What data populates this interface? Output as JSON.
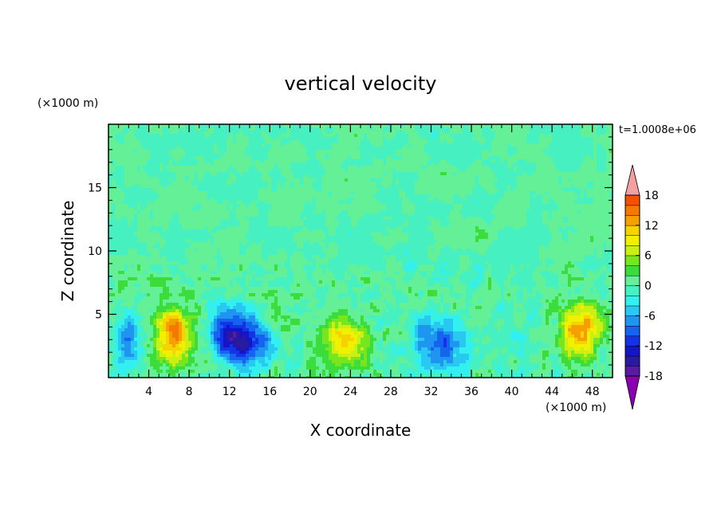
{
  "chart_data": {
    "type": "heatmap",
    "title": "vertical velocity",
    "xlabel": "X coordinate",
    "ylabel": "Z coordinate",
    "x_unit": "(×1000 m)",
    "y_unit": "(×1000 m)",
    "time_label": "t=1.0008e+06",
    "xlim": [
      0,
      50
    ],
    "ylim": [
      0,
      20
    ],
    "x_ticks": [
      4,
      8,
      12,
      16,
      20,
      24,
      28,
      32,
      36,
      40,
      44,
      48
    ],
    "y_ticks": [
      5,
      10,
      15
    ],
    "colorbar": {
      "levels": [
        -20,
        -18,
        -16,
        -14,
        -12,
        -10,
        -8,
        -6,
        -4,
        -2,
        0,
        2,
        4,
        6,
        8,
        10,
        12,
        14,
        16,
        18,
        20
      ],
      "tick_labels": [
        18,
        12,
        6,
        0,
        -6,
        -12,
        -18
      ],
      "colors": [
        "#8a00b0",
        "#5a1aa8",
        "#2a1aa0",
        "#1414c8",
        "#1432e6",
        "#1464f0",
        "#1e96f0",
        "#28c8f0",
        "#32f0f0",
        "#46f0c0",
        "#64f096",
        "#3cdc3c",
        "#78e61e",
        "#c8f014",
        "#f0f000",
        "#f5d200",
        "#f5a000",
        "#f57800",
        "#f55000",
        "#eb2814",
        "#f5a0a0"
      ],
      "extend": "both"
    },
    "features": [
      {
        "x": 6.5,
        "z": 3.5,
        "peak": 14
      },
      {
        "x": 23.5,
        "z": 2.8,
        "peak": 10
      },
      {
        "x": 46.8,
        "z": 3.6,
        "peak": 14
      },
      {
        "x": 12.0,
        "z": 3.2,
        "peak": -12
      },
      {
        "x": 14.0,
        "z": 2.8,
        "peak": -10
      },
      {
        "x": 2.0,
        "z": 2.8,
        "peak": -8
      },
      {
        "x": 33.7,
        "z": 2.7,
        "peak": -10
      },
      {
        "x": 31.0,
        "z": 3.4,
        "peak": -5
      },
      {
        "x": 17.5,
        "z": 5.0,
        "peak": 3
      }
    ]
  }
}
